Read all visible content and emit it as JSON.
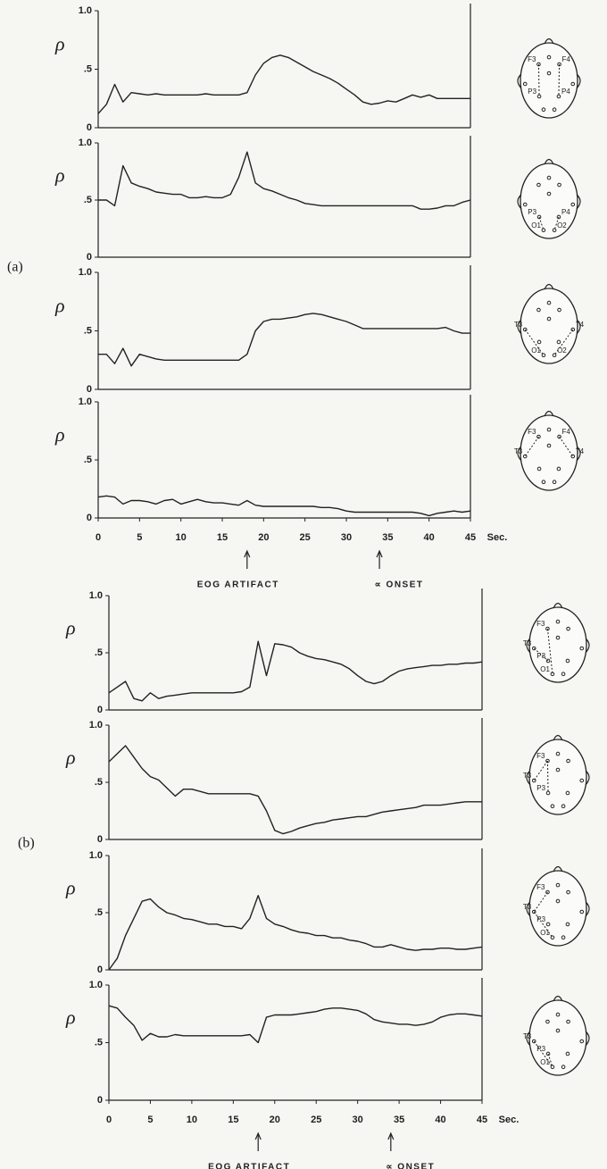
{
  "panel_labels": [
    "(a)",
    "(b)"
  ],
  "chart_data": [
    {
      "type": "line",
      "ylabel": "ρ",
      "electrodes": [
        "F3",
        "F4",
        "P3",
        "P4"
      ],
      "x": [
        0,
        1,
        2,
        3,
        4,
        5,
        6,
        7,
        8,
        9,
        10,
        11,
        12,
        13,
        14,
        15,
        16,
        17,
        18,
        19,
        20,
        21,
        22,
        23,
        24,
        25,
        26,
        27,
        28,
        29,
        30,
        31,
        32,
        33,
        34,
        35,
        36,
        37,
        38,
        39,
        40,
        41,
        42,
        43,
        44,
        45
      ],
      "series": [
        {
          "color": "#222222",
          "values": [
            0.12,
            0.2,
            0.37,
            0.22,
            0.3,
            0.29,
            0.28,
            0.29,
            0.28,
            0.28,
            0.28,
            0.28,
            0.28,
            0.29,
            0.28,
            0.28,
            0.28,
            0.28,
            0.3,
            0.45,
            0.55,
            0.6,
            0.62,
            0.6,
            0.56,
            0.52,
            0.48,
            0.45,
            0.42,
            0.38,
            0.33,
            0.28,
            0.22,
            0.2,
            0.21,
            0.23,
            0.22,
            0.25,
            0.28,
            0.26,
            0.28,
            0.25,
            0.25,
            0.25,
            0.25,
            0.25
          ]
        }
      ],
      "xlim": [
        0,
        45
      ],
      "ylim": [
        0,
        1
      ],
      "yticks": [
        0,
        {
          "value": 0.5,
          "label": ".5"
        },
        {
          "value": 1,
          "label": "1.0"
        }
      ]
    },
    {
      "type": "line",
      "ylabel": "ρ",
      "electrodes": [
        "P3",
        "P4",
        "O1",
        "O2"
      ],
      "x": [
        0,
        1,
        2,
        3,
        4,
        5,
        6,
        7,
        8,
        9,
        10,
        11,
        12,
        13,
        14,
        15,
        16,
        17,
        18,
        19,
        20,
        21,
        22,
        23,
        24,
        25,
        26,
        27,
        28,
        29,
        30,
        31,
        32,
        33,
        34,
        35,
        36,
        37,
        38,
        39,
        40,
        41,
        42,
        43,
        44,
        45
      ],
      "series": [
        {
          "color": "#222222",
          "values": [
            0.5,
            0.5,
            0.45,
            0.8,
            0.65,
            0.62,
            0.6,
            0.57,
            0.56,
            0.55,
            0.55,
            0.52,
            0.52,
            0.53,
            0.52,
            0.52,
            0.55,
            0.7,
            0.92,
            0.65,
            0.6,
            0.58,
            0.55,
            0.52,
            0.5,
            0.47,
            0.46,
            0.45,
            0.45,
            0.45,
            0.45,
            0.45,
            0.45,
            0.45,
            0.45,
            0.45,
            0.45,
            0.45,
            0.45,
            0.42,
            0.42,
            0.43,
            0.45,
            0.45,
            0.48,
            0.5
          ]
        }
      ],
      "xlim": [
        0,
        45
      ],
      "ylim": [
        0,
        1
      ],
      "yticks": [
        0,
        {
          "value": 0.5,
          "label": ".5"
        },
        {
          "value": 1,
          "label": "1.0"
        }
      ]
    },
    {
      "type": "line",
      "ylabel": "ρ",
      "electrodes": [
        "T3",
        "T4",
        "O1",
        "O2"
      ],
      "x": [
        0,
        1,
        2,
        3,
        4,
        5,
        6,
        7,
        8,
        9,
        10,
        11,
        12,
        13,
        14,
        15,
        16,
        17,
        18,
        19,
        20,
        21,
        22,
        23,
        24,
        25,
        26,
        27,
        28,
        29,
        30,
        31,
        32,
        33,
        34,
        35,
        36,
        37,
        38,
        39,
        40,
        41,
        42,
        43,
        44,
        45
      ],
      "series": [
        {
          "color": "#222222",
          "values": [
            0.3,
            0.3,
            0.22,
            0.35,
            0.2,
            0.3,
            0.28,
            0.26,
            0.25,
            0.25,
            0.25,
            0.25,
            0.25,
            0.25,
            0.25,
            0.25,
            0.25,
            0.25,
            0.3,
            0.5,
            0.58,
            0.6,
            0.6,
            0.61,
            0.62,
            0.64,
            0.65,
            0.64,
            0.62,
            0.6,
            0.58,
            0.55,
            0.52,
            0.52,
            0.52,
            0.52,
            0.52,
            0.52,
            0.52,
            0.52,
            0.52,
            0.52,
            0.53,
            0.5,
            0.48,
            0.48
          ]
        }
      ],
      "xlim": [
        0,
        45
      ],
      "ylim": [
        0,
        1
      ],
      "yticks": [
        0,
        {
          "value": 0.5,
          "label": ".5"
        },
        {
          "value": 1,
          "label": "1.0"
        }
      ]
    },
    {
      "type": "line",
      "ylabel": "ρ",
      "electrodes": [
        "F3",
        "F4",
        "T3",
        "T4"
      ],
      "x": [
        0,
        1,
        2,
        3,
        4,
        5,
        6,
        7,
        8,
        9,
        10,
        11,
        12,
        13,
        14,
        15,
        16,
        17,
        18,
        19,
        20,
        21,
        22,
        23,
        24,
        25,
        26,
        27,
        28,
        29,
        30,
        31,
        32,
        33,
        34,
        35,
        36,
        37,
        38,
        39,
        40,
        41,
        42,
        43,
        44,
        45
      ],
      "series": [
        {
          "color": "#222222",
          "values": [
            0.18,
            0.19,
            0.18,
            0.12,
            0.15,
            0.15,
            0.14,
            0.12,
            0.15,
            0.16,
            0.12,
            0.14,
            0.16,
            0.14,
            0.13,
            0.13,
            0.12,
            0.11,
            0.15,
            0.11,
            0.1,
            0.1,
            0.1,
            0.1,
            0.1,
            0.1,
            0.1,
            0.09,
            0.09,
            0.08,
            0.06,
            0.05,
            0.05,
            0.05,
            0.05,
            0.05,
            0.05,
            0.05,
            0.05,
            0.04,
            0.02,
            0.04,
            0.05,
            0.06,
            0.05,
            0.06
          ]
        }
      ],
      "xlim": [
        0,
        45
      ],
      "ylim": [
        0,
        1
      ],
      "yticks": [
        0,
        {
          "value": 0.5,
          "label": ".5"
        },
        {
          "value": 1,
          "label": "1.0"
        }
      ],
      "xticks": [
        0,
        5,
        10,
        15,
        20,
        25,
        30,
        35,
        40,
        45
      ],
      "xlabel": "Sec.",
      "annotations": [
        {
          "text": "EOG ARTIFACT",
          "x": 18
        },
        {
          "text": "∝ ONSET",
          "x": 34
        }
      ]
    },
    {
      "type": "line",
      "ylabel": "ρ",
      "electrodes": [
        "F3",
        "T3",
        "P3",
        "O1"
      ],
      "x": [
        0,
        1,
        2,
        3,
        4,
        5,
        6,
        7,
        8,
        9,
        10,
        11,
        12,
        13,
        14,
        15,
        16,
        17,
        18,
        19,
        20,
        21,
        22,
        23,
        24,
        25,
        26,
        27,
        28,
        29,
        30,
        31,
        32,
        33,
        34,
        35,
        36,
        37,
        38,
        39,
        40,
        41,
        42,
        43,
        44,
        45
      ],
      "series": [
        {
          "color": "#222222",
          "values": [
            0.15,
            0.2,
            0.25,
            0.1,
            0.08,
            0.15,
            0.1,
            0.12,
            0.13,
            0.14,
            0.15,
            0.15,
            0.15,
            0.15,
            0.15,
            0.15,
            0.16,
            0.2,
            0.6,
            0.3,
            0.58,
            0.57,
            0.55,
            0.5,
            0.47,
            0.45,
            0.44,
            0.42,
            0.4,
            0.36,
            0.3,
            0.25,
            0.23,
            0.25,
            0.3,
            0.34,
            0.36,
            0.37,
            0.38,
            0.39,
            0.39,
            0.4,
            0.4,
            0.41,
            0.41,
            0.42
          ]
        }
      ],
      "xlim": [
        0,
        45
      ],
      "ylim": [
        0,
        1
      ],
      "yticks": [
        0,
        {
          "value": 0.5,
          "label": ".5"
        },
        {
          "value": 1,
          "label": "1.0"
        }
      ]
    },
    {
      "type": "line",
      "ylabel": "ρ",
      "electrodes": [
        "F3",
        "T3",
        "P3"
      ],
      "x": [
        0,
        1,
        2,
        3,
        4,
        5,
        6,
        7,
        8,
        9,
        10,
        11,
        12,
        13,
        14,
        15,
        16,
        17,
        18,
        19,
        20,
        21,
        22,
        23,
        24,
        25,
        26,
        27,
        28,
        29,
        30,
        31,
        32,
        33,
        34,
        35,
        36,
        37,
        38,
        39,
        40,
        41,
        42,
        43,
        44,
        45
      ],
      "series": [
        {
          "color": "#222222",
          "values": [
            0.68,
            0.75,
            0.82,
            0.72,
            0.62,
            0.55,
            0.52,
            0.45,
            0.38,
            0.44,
            0.44,
            0.42,
            0.4,
            0.4,
            0.4,
            0.4,
            0.4,
            0.4,
            0.38,
            0.25,
            0.08,
            0.05,
            0.07,
            0.1,
            0.12,
            0.14,
            0.15,
            0.17,
            0.18,
            0.19,
            0.2,
            0.2,
            0.22,
            0.24,
            0.25,
            0.26,
            0.27,
            0.28,
            0.3,
            0.3,
            0.3,
            0.31,
            0.32,
            0.33,
            0.33,
            0.33
          ]
        }
      ],
      "xlim": [
        0,
        45
      ],
      "ylim": [
        0,
        1
      ],
      "yticks": [
        0,
        {
          "value": 0.5,
          "label": ".5"
        },
        {
          "value": 1,
          "label": "1.0"
        }
      ]
    },
    {
      "type": "line",
      "ylabel": "ρ",
      "electrodes": [
        "F3",
        "T3",
        "P3",
        "O1"
      ],
      "x": [
        0,
        1,
        2,
        3,
        4,
        5,
        6,
        7,
        8,
        9,
        10,
        11,
        12,
        13,
        14,
        15,
        16,
        17,
        18,
        19,
        20,
        21,
        22,
        23,
        24,
        25,
        26,
        27,
        28,
        29,
        30,
        31,
        32,
        33,
        34,
        35,
        36,
        37,
        38,
        39,
        40,
        41,
        42,
        43,
        44,
        45
      ],
      "series": [
        {
          "color": "#222222",
          "values": [
            0,
            0.1,
            0.3,
            0.45,
            0.6,
            0.62,
            0.55,
            0.5,
            0.48,
            0.45,
            0.44,
            0.42,
            0.4,
            0.4,
            0.38,
            0.38,
            0.36,
            0.45,
            0.65,
            0.45,
            0.4,
            0.38,
            0.35,
            0.33,
            0.32,
            0.3,
            0.3,
            0.28,
            0.28,
            0.26,
            0.25,
            0.23,
            0.2,
            0.2,
            0.22,
            0.2,
            0.18,
            0.17,
            0.18,
            0.18,
            0.19,
            0.19,
            0.18,
            0.18,
            0.19,
            0.2
          ]
        }
      ],
      "xlim": [
        0,
        45
      ],
      "ylim": [
        0,
        1
      ],
      "yticks": [
        0,
        {
          "value": 0.5,
          "label": ".5"
        },
        {
          "value": 1,
          "label": "1.0"
        }
      ]
    },
    {
      "type": "line",
      "ylabel": "ρ",
      "electrodes": [
        "T3",
        "P3",
        "O1"
      ],
      "x": [
        0,
        1,
        2,
        3,
        4,
        5,
        6,
        7,
        8,
        9,
        10,
        11,
        12,
        13,
        14,
        15,
        16,
        17,
        18,
        19,
        20,
        21,
        22,
        23,
        24,
        25,
        26,
        27,
        28,
        29,
        30,
        31,
        32,
        33,
        34,
        35,
        36,
        37,
        38,
        39,
        40,
        41,
        42,
        43,
        44,
        45
      ],
      "series": [
        {
          "color": "#222222",
          "values": [
            0.82,
            0.8,
            0.72,
            0.65,
            0.52,
            0.58,
            0.55,
            0.55,
            0.57,
            0.56,
            0.56,
            0.56,
            0.56,
            0.56,
            0.56,
            0.56,
            0.56,
            0.57,
            0.5,
            0.72,
            0.74,
            0.74,
            0.74,
            0.75,
            0.76,
            0.77,
            0.79,
            0.8,
            0.8,
            0.79,
            0.78,
            0.75,
            0.7,
            0.68,
            0.67,
            0.66,
            0.66,
            0.65,
            0.66,
            0.68,
            0.72,
            0.74,
            0.75,
            0.75,
            0.74,
            0.73
          ]
        }
      ],
      "xlim": [
        0,
        45
      ],
      "ylim": [
        0,
        1
      ],
      "yticks": [
        0,
        {
          "value": 0.5,
          "label": ".5"
        },
        {
          "value": 1,
          "label": "1.0"
        }
      ],
      "xticks": [
        0,
        5,
        10,
        15,
        20,
        25,
        30,
        35,
        40,
        45
      ],
      "xlabel": "Sec.",
      "annotations": [
        {
          "text": "EOG ARTIFACT",
          "x": 18
        },
        {
          "text": "∝ ONSET",
          "x": 34
        }
      ]
    }
  ]
}
